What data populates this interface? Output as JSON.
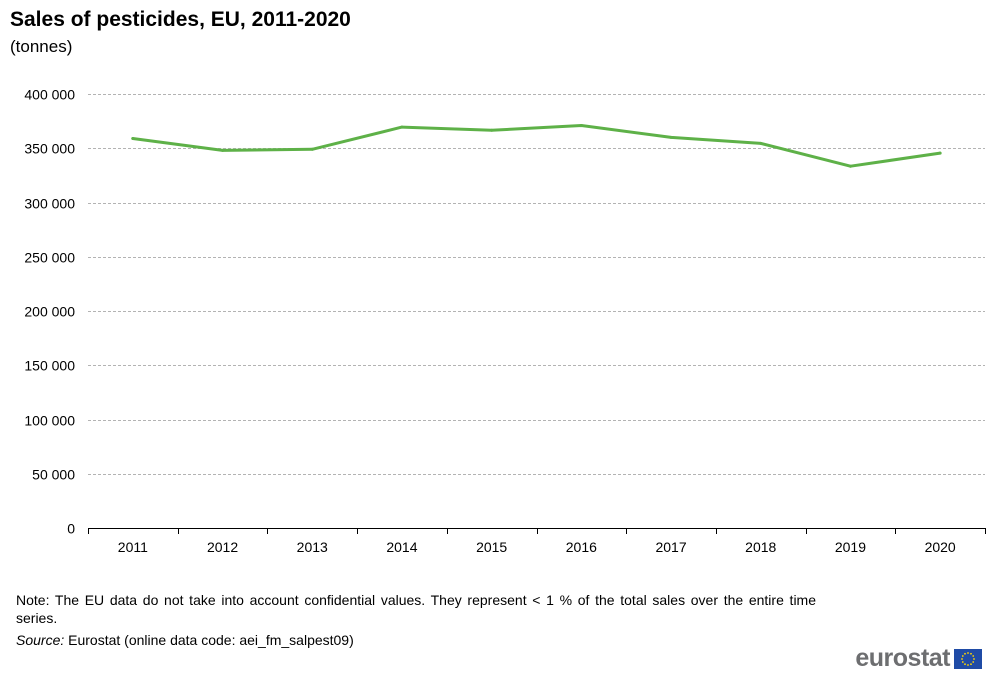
{
  "chart_data": {
    "type": "line",
    "title": "Sales of pesticides, EU, 2011-2020",
    "subtitle": "(tonnes)",
    "x": [
      "2011",
      "2012",
      "2013",
      "2014",
      "2015",
      "2016",
      "2017",
      "2018",
      "2019",
      "2020"
    ],
    "series": [
      {
        "values": [
          359000,
          348000,
          349000,
          369500,
          366500,
          371000,
          360000,
          354500,
          333500,
          345500
        ]
      }
    ],
    "ylim": [
      0,
      400000
    ],
    "yticks": [
      0,
      50000,
      100000,
      150000,
      200000,
      250000,
      300000,
      350000,
      400000
    ],
    "ytick_labels": [
      "0",
      "50 000",
      "100 000",
      "150 000",
      "200 000",
      "250 000",
      "300 000",
      "350 000",
      "400 000"
    ],
    "grid": true,
    "line_color": "#5eb148",
    "grid_color": "#b3b3b3"
  },
  "footer": {
    "note": "Note: The EU data do not take into account confidential values. They represent < 1 % of the total sales over the entire time series.",
    "source_label": "Source:",
    "source_text": " Eurostat (online data code: aei_fm_salpest09)",
    "logo_text": "eurostat",
    "logo_flag_color": "#1f4ba6",
    "logo_star_color": "#ffd700"
  }
}
